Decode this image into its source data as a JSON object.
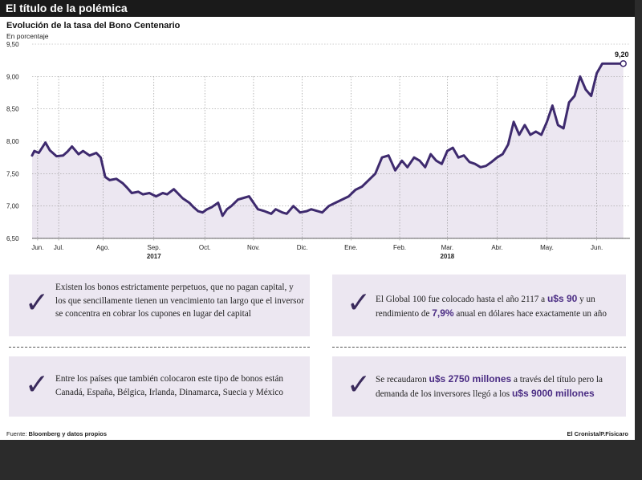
{
  "header": {
    "title": "El título de la polémica",
    "subtitle": "Evolución de la tasa del Bono Centenario",
    "unit": "En porcentaje"
  },
  "chart_data": {
    "type": "line",
    "title": "Evolución de la tasa del Bono Centenario",
    "ylabel": "En porcentaje",
    "ylim": [
      6.5,
      9.5
    ],
    "yticks": [
      "9,50",
      "9,00",
      "8,50",
      "8,00",
      "7,50",
      "7,00",
      "6,50"
    ],
    "ytick_values": [
      9.5,
      9.0,
      8.5,
      8.0,
      7.5,
      7.0,
      6.5
    ],
    "month_labels": [
      "Jun.",
      "Jul.",
      "Ago.",
      "Sep.",
      "Oct.",
      "Nov.",
      "Dic.",
      "Ene.",
      "Feb.",
      "Mar.",
      "Abr.",
      "May.",
      "Jun."
    ],
    "month_index": [
      0.5,
      2.4,
      6.4,
      11.0,
      15.6,
      20.0,
      24.4,
      28.8,
      33.2,
      37.5,
      42.0,
      46.5,
      51.0
    ],
    "year_labels": [
      {
        "label": "2017",
        "at": 11.0
      },
      {
        "label": "2018",
        "at": 37.5
      }
    ],
    "x_range": [
      0,
      54
    ],
    "series": [
      {
        "name": "Tasa del Bono Centenario",
        "color": "#3e2a6e",
        "x": [
          0,
          0.2,
          0.6,
          1.2,
          1.6,
          2.2,
          2.8,
          3.2,
          3.6,
          4.2,
          4.6,
          5.2,
          5.8,
          6.2,
          6.6,
          7.0,
          7.6,
          8.2,
          8.6,
          9.0,
          9.6,
          10.0,
          10.6,
          11.2,
          11.8,
          12.2,
          12.8,
          13.6,
          14.2,
          14.6,
          15.0,
          15.4,
          15.8,
          16.2,
          16.8,
          17.2,
          17.6,
          18.0,
          18.6,
          19.0,
          19.6,
          20.0,
          20.4,
          21.0,
          21.6,
          22.0,
          22.6,
          23.0,
          23.6,
          24.2,
          24.8,
          25.2,
          25.8,
          26.2,
          26.8,
          27.4,
          28.0,
          28.6,
          29.2,
          29.8,
          30.4,
          31.0,
          31.6,
          32.2,
          32.8,
          33.4,
          33.9,
          34.5,
          35.0,
          35.5,
          36.0,
          36.5,
          37.0,
          37.5,
          38.0,
          38.5,
          39.0,
          39.5,
          40.0,
          40.5,
          41.0,
          41.5,
          42.0,
          42.5,
          43.0,
          43.5,
          44.0,
          44.5,
          45.0,
          45.5,
          46.0,
          46.5,
          47.0,
          47.5,
          48.0,
          48.5,
          49.0,
          49.5,
          50.0,
          50.5,
          51.0,
          51.5,
          52.0,
          52.5,
          53.0,
          53.4
        ],
        "values": [
          7.78,
          7.85,
          7.82,
          7.98,
          7.86,
          7.77,
          7.78,
          7.84,
          7.92,
          7.8,
          7.85,
          7.78,
          7.82,
          7.75,
          7.45,
          7.4,
          7.42,
          7.35,
          7.28,
          7.2,
          7.22,
          7.18,
          7.2,
          7.15,
          7.2,
          7.18,
          7.26,
          7.12,
          7.05,
          6.98,
          6.92,
          6.9,
          6.95,
          6.98,
          7.05,
          6.85,
          6.95,
          7.0,
          7.1,
          7.12,
          7.15,
          7.05,
          6.95,
          6.92,
          6.88,
          6.95,
          6.9,
          6.88,
          7.0,
          6.9,
          6.92,
          6.95,
          6.92,
          6.9,
          7.0,
          7.05,
          7.1,
          7.15,
          7.25,
          7.3,
          7.4,
          7.5,
          7.75,
          7.78,
          7.55,
          7.7,
          7.6,
          7.75,
          7.7,
          7.6,
          7.8,
          7.7,
          7.65,
          7.85,
          7.9,
          7.75,
          7.78,
          7.68,
          7.65,
          7.6,
          7.62,
          7.68,
          7.75,
          7.8,
          7.95,
          8.3,
          8.1,
          8.25,
          8.1,
          8.15,
          8.1,
          8.3,
          8.55,
          8.25,
          8.2,
          8.6,
          8.7,
          9.0,
          8.8,
          8.7,
          9.05,
          9.2,
          9.2,
          9.2,
          9.2,
          9.2
        ]
      }
    ],
    "annotation": {
      "label": "9,20",
      "value": 9.2
    }
  },
  "facts": [
    {
      "text": "Existen los bonos estrictamente perpetuos, que no pagan capital, y los que sencillamente tienen un vencimiento tan largo que el inversor se concentra en cobrar los cupones en lugar del capital"
    },
    {
      "pre": "El Global 100 fue colocado hasta el año 2117 a ",
      "hl1": "u$s 90",
      "mid": " y un rendimiento de ",
      "hl2": "7,9%",
      "post": " anual en dólares hace exactamente un año"
    },
    {
      "text": "Entre los países que también colocaron este tipo de bonos están Canadá, España, Bélgica, Irlanda, Dinamarca, Suecia y México"
    },
    {
      "pre": "Se recaudaron ",
      "hl1": "u$s 2750 millones",
      "mid": " a través del título pero la demanda de los inversores llegó a los ",
      "hl2": "u$s 9000 millones"
    }
  ],
  "footer": {
    "source_prefix": "Fuente: ",
    "source": "Bloomberg y datos propios",
    "credit": "El Cronista/P.Fisicaro"
  },
  "colors": {
    "line": "#3e2a6e",
    "area": "#ece7f1",
    "box": "#ece7f1",
    "highlight": "#4b2d84",
    "title_bar": "#1a1a1a"
  }
}
